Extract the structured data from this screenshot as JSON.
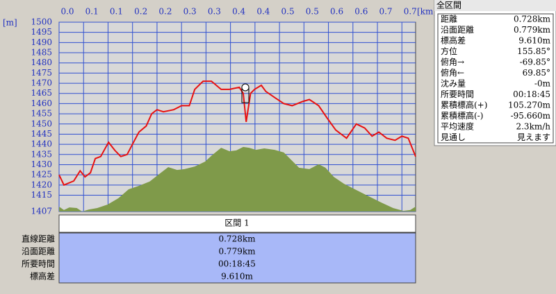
{
  "chart_data": {
    "type": "line",
    "x_unit": "[km]",
    "y_unit": "[m]",
    "xlim": [
      0,
      0.728
    ],
    "ylim": [
      1407,
      1500
    ],
    "xticks": [
      {
        "value": 0,
        "label": "0.0"
      },
      {
        "value": 0.05,
        "label": "0.1"
      },
      0.1,
      {
        "value": 0.15,
        "label": "0.2"
      },
      0.2,
      {
        "value": 0.25,
        "label": "0.3"
      },
      0.3,
      {
        "value": 0.35,
        "label": "0.4"
      },
      0.4,
      {
        "value": 0.45,
        "label": "0.5"
      },
      0.5,
      {
        "value": 0.55,
        "label": "0.6"
      },
      0.6,
      {
        "value": 0.65,
        "label": "0.7"
      },
      0.7
    ],
    "yticks": [
      1407,
      1415,
      1420,
      1425,
      1430,
      1435,
      1440,
      1445,
      1450,
      1455,
      1460,
      1465,
      1470,
      1475,
      1480,
      1485,
      1490,
      1495,
      1500
    ],
    "grid": true,
    "series": [
      {
        "color": "#7f9a4a",
        "fill": true,
        "x": [
          0,
          0.01,
          0.021,
          0.036,
          0.047,
          0.061,
          0.078,
          0.099,
          0.121,
          0.142,
          0.163,
          0.185,
          0.206,
          0.223,
          0.241,
          0.256,
          0.277,
          0.298,
          0.312,
          0.331,
          0.348,
          0.362,
          0.376,
          0.388,
          0.402,
          0.419,
          0.44,
          0.459,
          0.473,
          0.49,
          0.511,
          0.53,
          0.544,
          0.561,
          0.582,
          0.604,
          0.632,
          0.658,
          0.682,
          0.703,
          0.717,
          0.728
        ],
        "values": [
          1409.4,
          1407.7,
          1409.0,
          1408.7,
          1407.0,
          1408.0,
          1408.7,
          1410.4,
          1413.5,
          1417.9,
          1419.6,
          1421.7,
          1425.7,
          1428.8,
          1427.4,
          1427.8,
          1429.1,
          1431.5,
          1434.6,
          1438.3,
          1436.6,
          1437.0,
          1438.7,
          1438.3,
          1437.3,
          1438.0,
          1437.3,
          1436.0,
          1432.6,
          1428.5,
          1427.8,
          1430.2,
          1428.5,
          1424.0,
          1420.6,
          1417.9,
          1414.5,
          1411.4,
          1408.7,
          1407.3,
          1407.7,
          1409.4
        ]
      },
      {
        "color": "#e81010",
        "x": [
          0,
          0.01,
          0.03,
          0.043,
          0.053,
          0.064,
          0.074,
          0.085,
          0.101,
          0.114,
          0.126,
          0.139,
          0.152,
          0.163,
          0.178,
          0.189,
          0.2,
          0.213,
          0.234,
          0.25,
          0.266,
          0.277,
          0.294,
          0.311,
          0.331,
          0.348,
          0.368,
          0.376,
          0.382,
          0.391,
          0.399,
          0.413,
          0.422,
          0.44,
          0.459,
          0.476,
          0.497,
          0.511,
          0.53,
          0.547,
          0.565,
          0.587,
          0.607,
          0.624,
          0.639,
          0.653,
          0.669,
          0.686,
          0.7,
          0.713,
          0.728
        ],
        "values": [
          1425,
          1420,
          1422,
          1427,
          1424,
          1426,
          1433,
          1434,
          1441,
          1437,
          1434,
          1435,
          1441,
          1446,
          1449,
          1455,
          1457,
          1456,
          1457,
          1459,
          1459,
          1467,
          1471,
          1471,
          1467,
          1467,
          1468,
          1465,
          1451,
          1465,
          1467,
          1469,
          1466,
          1463,
          1460,
          1459,
          1461,
          1462,
          1459,
          1453,
          1447,
          1443,
          1450,
          1448,
          1444,
          1446,
          1443,
          1442,
          1444,
          1443,
          1434
        ]
      }
    ]
  },
  "summary": {
    "title": "全区間",
    "rows": [
      [
        "距離",
        "0.728km"
      ],
      [
        "沿面距離",
        "0.779km"
      ],
      [
        "標高差",
        "9.610m"
      ],
      [
        "方位",
        "155.85°"
      ],
      [
        "俯角→",
        "-69.85°"
      ],
      [
        "俯角←",
        "69.85°"
      ],
      [
        "沈み量",
        "-0m"
      ],
      [
        "所要時間",
        "00:18:45"
      ],
      [
        "累積標高(+)",
        "105.270m"
      ],
      [
        "累積標高(-)",
        "-95.660m"
      ],
      [
        "平均速度",
        "2.3km/h"
      ],
      [
        "見通し",
        "見えます"
      ]
    ]
  },
  "section": {
    "header": "区間 1",
    "rows": [
      [
        "直線距離",
        "0.728km"
      ],
      [
        "沿面距離",
        "0.779km"
      ],
      [
        "所要時間",
        "00:18:45"
      ],
      [
        "標高差",
        "9.610m"
      ]
    ]
  }
}
